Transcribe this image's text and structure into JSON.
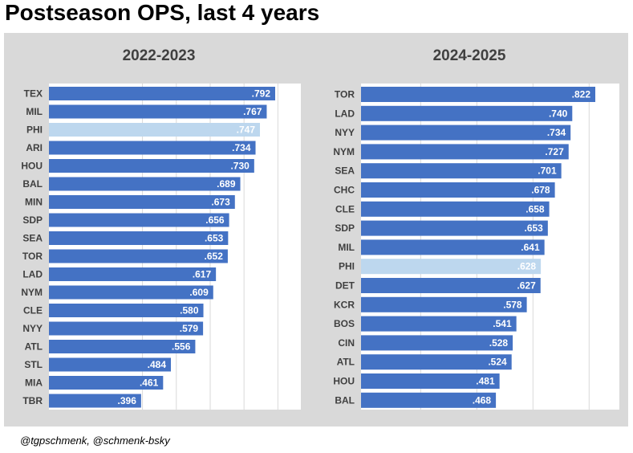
{
  "title": "Postseason OPS, last 4 years",
  "credit": "@tgpschmenk, @schmenk-bsky",
  "colors": {
    "bar": "#4472c4",
    "highlight": "#bdd7ee",
    "panel": "#d9d9d9",
    "grid": "#d9d9d9"
  },
  "chart_data": [
    {
      "type": "bar",
      "orientation": "horizontal",
      "title": "2022-2023",
      "highlight": "PHI",
      "xlim": [
        0,
        1
      ],
      "categories": [
        "TEX",
        "MIL",
        "PHI",
        "ARI",
        "HOU",
        "BAL",
        "MIN",
        "SDP",
        "SEA",
        "TOR",
        "LAD",
        "NYM",
        "CLE",
        "NYY",
        "ATL",
        "STL",
        "MIA",
        "TBR"
      ],
      "values": [
        0.792,
        0.767,
        0.747,
        0.734,
        0.73,
        0.689,
        0.673,
        0.656,
        0.653,
        0.652,
        0.617,
        0.609,
        0.58,
        0.579,
        0.556,
        0.484,
        0.461,
        0.396
      ],
      "labels": [
        ".792",
        ".767",
        ".747",
        ".734",
        ".730",
        ".689",
        ".673",
        ".656",
        ".653",
        ".652",
        ".617",
        ".609",
        ".580",
        ".579",
        ".556",
        ".484",
        ".461",
        ".396"
      ]
    },
    {
      "type": "bar",
      "orientation": "horizontal",
      "title": "2024-2025",
      "highlight": "PHI",
      "xlim": [
        0,
        1
      ],
      "categories": [
        "TOR",
        "LAD",
        "NYY",
        "NYM",
        "SEA",
        "CHC",
        "CLE",
        "SDP",
        "MIL",
        "PHI",
        "DET",
        "KCR",
        "BOS",
        "CIN",
        "ATL",
        "HOU",
        "BAL"
      ],
      "values": [
        0.822,
        0.74,
        0.734,
        0.727,
        0.701,
        0.678,
        0.658,
        0.653,
        0.641,
        0.628,
        0.627,
        0.578,
        0.541,
        0.528,
        0.524,
        0.481,
        0.468
      ],
      "labels": [
        ".822",
        ".740",
        ".734",
        ".727",
        ".701",
        ".678",
        ".658",
        ".653",
        ".641",
        ".628",
        ".627",
        ".578",
        ".541",
        ".528",
        ".524",
        ".481",
        ".468"
      ]
    }
  ]
}
